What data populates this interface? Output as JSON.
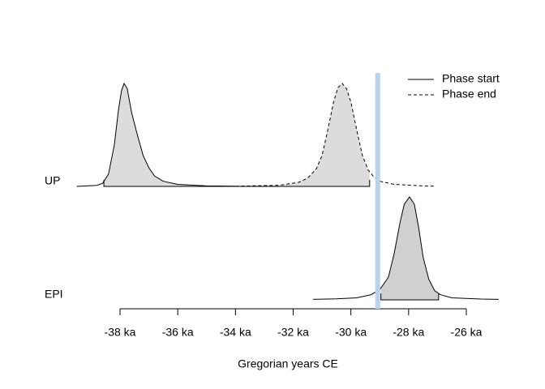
{
  "chart_data": {
    "type": "density",
    "xlabel": "Gregorian years CE",
    "xlim": [
      -38,
      -26
    ],
    "xticks": [
      {
        "value": -38,
        "label": "-38 ka"
      },
      {
        "value": -36,
        "label": "-36 ka"
      },
      {
        "value": -34,
        "label": "-34 ka"
      },
      {
        "value": -32,
        "label": "-32 ka"
      },
      {
        "value": -30,
        "label": "-30 ka"
      },
      {
        "value": -28,
        "label": "-28 ka"
      },
      {
        "value": -26,
        "label": "-26 ka"
      }
    ],
    "ylim": [
      0,
      1
    ],
    "legend": "topright",
    "marker_line": {
      "x": -29.07,
      "color": "#b9d3ee"
    },
    "rows": [
      {
        "label": "UP",
        "fill": "#dcdcdc",
        "interval": [
          -38.56,
          -29.35
        ],
        "series": [
          {
            "name": "Phase start",
            "style": "solid",
            "color": "#000000",
            "x": [
              -39.5,
              -38.8,
              -38.6,
              -38.4,
              -38.2,
              -38.05,
              -37.95,
              -37.86,
              -37.75,
              -37.6,
              -37.4,
              -37.2,
              -37.0,
              -36.8,
              -36.5,
              -36.0,
              -35.0,
              -34.0
            ],
            "values": [
              0,
              0.01,
              0.03,
              0.12,
              0.4,
              0.75,
              0.93,
              1.0,
              0.95,
              0.72,
              0.5,
              0.3,
              0.18,
              0.1,
              0.05,
              0.02,
              0.005,
              0.002
            ]
          },
          {
            "name": "Phase end",
            "style": "dashed",
            "color": "#000000",
            "x": [
              -34.0,
              -32.5,
              -31.8,
              -31.5,
              -31.2,
              -31.0,
              -30.8,
              -30.6,
              -30.45,
              -30.3,
              -30.15,
              -30.0,
              -29.8,
              -29.6,
              -29.4,
              -29.2,
              -29.0,
              -28.5,
              -27.5,
              -27.07
            ],
            "values": [
              0.002,
              0.01,
              0.04,
              0.08,
              0.17,
              0.3,
              0.55,
              0.82,
              0.96,
              1.0,
              0.95,
              0.82,
              0.55,
              0.3,
              0.16,
              0.09,
              0.05,
              0.02,
              0.005,
              0.002
            ]
          }
        ]
      },
      {
        "label": "EPI",
        "fill": "#d0d0d0",
        "interval": [
          -28.96,
          -26.96
        ],
        "series": [
          {
            "style": "solid",
            "color": "#000000",
            "x": [
              -31.31,
              -30.5,
              -29.8,
              -29.3,
              -29.0,
              -28.7,
              -28.5,
              -28.3,
              -28.15,
              -27.97,
              -27.8,
              -27.65,
              -27.5,
              -27.3,
              -27.1,
              -26.9,
              -26.5,
              -25.5,
              -24.88
            ],
            "values": [
              0.005,
              0.01,
              0.02,
              0.05,
              0.1,
              0.22,
              0.45,
              0.75,
              0.93,
              1.0,
              0.93,
              0.7,
              0.42,
              0.2,
              0.09,
              0.05,
              0.02,
              0.008,
              0.005
            ]
          }
        ]
      }
    ]
  }
}
